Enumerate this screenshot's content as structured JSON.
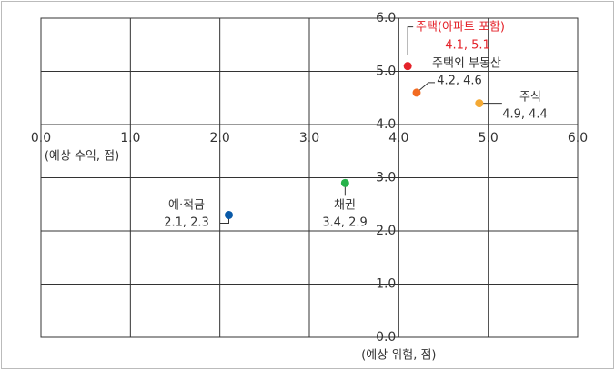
{
  "chart_data": {
    "type": "scatter",
    "x_title": "(예상 수익, 점)",
    "y_title": "(예상 위험, 점)",
    "xlim": [
      0,
      6
    ],
    "ylim": [
      0,
      6
    ],
    "xticks": [
      {
        "value": 0,
        "label": "0.0"
      },
      {
        "value": 1,
        "label": "1.0"
      },
      {
        "value": 2,
        "label": "2.0"
      },
      {
        "value": 3,
        "label": "3.0"
      },
      {
        "value": 4,
        "label": "4.0"
      },
      {
        "value": 5,
        "label": "5.0"
      },
      {
        "value": 6,
        "label": "6.0"
      }
    ],
    "yticks": [
      {
        "value": 0,
        "label": "0.0"
      },
      {
        "value": 1,
        "label": "1.0"
      },
      {
        "value": 2,
        "label": "2.0"
      },
      {
        "value": 3,
        "label": "3.0"
      },
      {
        "value": 4,
        "label": "4.0"
      },
      {
        "value": 5,
        "label": "5.0"
      },
      {
        "value": 6,
        "label": "6.0"
      }
    ],
    "x_axis_at_y": 4,
    "y_axis_at_x": 4,
    "grid": true,
    "series": [
      {
        "name": "주택(아파트 포함)",
        "color": "#e42229",
        "x": [
          4.1
        ],
        "values": [
          5.1
        ],
        "value_labels": [
          "4.1, 5.1"
        ]
      },
      {
        "name": "주택외 부동산",
        "color": "#f26b21",
        "x": [
          4.2
        ],
        "values": [
          4.6
        ],
        "value_labels": [
          "4.2, 4.6"
        ]
      },
      {
        "name": "주식",
        "color": "#f4a934",
        "x": [
          4.9
        ],
        "values": [
          4.4
        ],
        "value_labels": [
          "4.9, 4.4"
        ]
      },
      {
        "name": "채권",
        "color": "#27b24a",
        "x": [
          3.4
        ],
        "values": [
          2.9
        ],
        "value_labels": [
          "3.4, 2.9"
        ]
      },
      {
        "name": "예·적금",
        "color": "#0a5aa8",
        "x": [
          2.1
        ],
        "values": [
          2.3
        ],
        "value_labels": [
          "2.1, 2.3"
        ]
      }
    ]
  }
}
